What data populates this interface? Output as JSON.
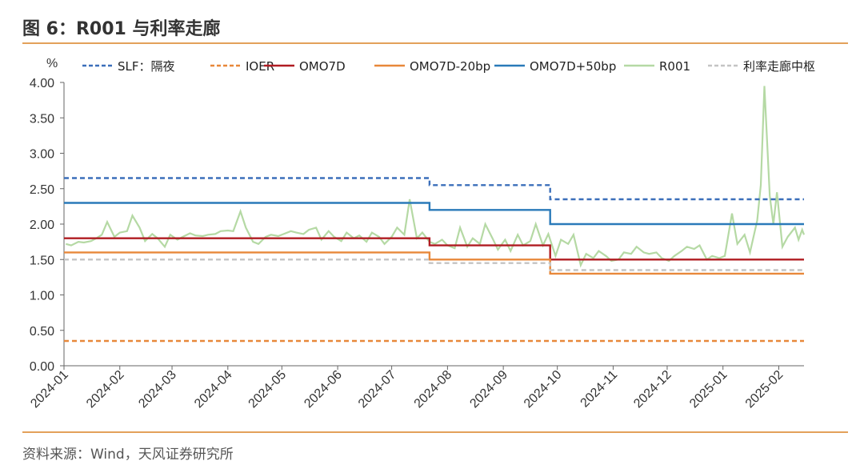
{
  "figure": {
    "title": "图 6：R001 与利率走廊",
    "source": "资料来源：Wind，天风证券研究所"
  },
  "chart_data": {
    "type": "line",
    "ylabel": "%",
    "ylim": [
      0,
      4
    ],
    "y_ticks": [
      "0.00",
      "0.50",
      "1.00",
      "1.50",
      "2.00",
      "2.50",
      "3.00",
      "3.50",
      "4.00"
    ],
    "x_ticks": [
      "2024-01",
      "2024-02",
      "2024-03",
      "2024-04",
      "2024-05",
      "2024-06",
      "2024-07",
      "2024-08",
      "2024-09",
      "2024-10",
      "2024-11",
      "2024-12",
      "2025-01",
      "2025-02"
    ],
    "x_range": [
      "2024-01-01",
      "2025-02-15"
    ],
    "grid": false,
    "legend_position": "top",
    "series": [
      {
        "name": "SLF：隔夜",
        "color": "#3b6fba",
        "dash": "6,4",
        "points": [
          [
            "2024-01-01",
            2.65
          ],
          [
            "2024-07-22",
            2.65
          ],
          [
            "2024-07-22",
            2.55
          ],
          [
            "2024-09-27",
            2.55
          ],
          [
            "2024-09-27",
            2.35
          ],
          [
            "2025-02-15",
            2.35
          ]
        ]
      },
      {
        "name": "IOER",
        "color": "#e8883a",
        "dash": "6,4",
        "points": [
          [
            "2024-01-01",
            0.35
          ],
          [
            "2025-02-15",
            0.35
          ]
        ]
      },
      {
        "name": "OMO7D",
        "color": "#b01c22",
        "dash": "",
        "points": [
          [
            "2024-01-01",
            1.8
          ],
          [
            "2024-07-22",
            1.8
          ],
          [
            "2024-07-22",
            1.7
          ],
          [
            "2024-09-27",
            1.7
          ],
          [
            "2024-09-27",
            1.5
          ],
          [
            "2025-02-15",
            1.5
          ]
        ]
      },
      {
        "name": "OMO7D-20bp",
        "color": "#e8883a",
        "dash": "",
        "points": [
          [
            "2024-01-01",
            1.6
          ],
          [
            "2024-07-22",
            1.6
          ],
          [
            "2024-07-22",
            1.5
          ],
          [
            "2024-09-27",
            1.5
          ],
          [
            "2024-09-27",
            1.3
          ],
          [
            "2025-02-15",
            1.3
          ]
        ]
      },
      {
        "name": "OMO7D+50bp",
        "color": "#2a7ab9",
        "dash": "",
        "points": [
          [
            "2024-01-01",
            2.3
          ],
          [
            "2024-07-22",
            2.3
          ],
          [
            "2024-07-22",
            2.2
          ],
          [
            "2024-09-27",
            2.2
          ],
          [
            "2024-09-27",
            2.0
          ],
          [
            "2025-02-15",
            2.0
          ]
        ]
      },
      {
        "name": "R001",
        "color": "#b5d9a4",
        "dash": "",
        "points": [
          [
            "2024-01-02",
            1.72
          ],
          [
            "2024-01-05",
            1.7
          ],
          [
            "2024-01-09",
            1.75
          ],
          [
            "2024-01-12",
            1.74
          ],
          [
            "2024-01-16",
            1.76
          ],
          [
            "2024-01-19",
            1.8
          ],
          [
            "2024-01-22",
            1.85
          ],
          [
            "2024-01-25",
            2.03
          ],
          [
            "2024-01-29",
            1.82
          ],
          [
            "2024-02-01",
            1.88
          ],
          [
            "2024-02-05",
            1.9
          ],
          [
            "2024-02-08",
            2.12
          ],
          [
            "2024-02-12",
            1.95
          ],
          [
            "2024-02-15",
            1.76
          ],
          [
            "2024-02-19",
            1.86
          ],
          [
            "2024-02-22",
            1.8
          ],
          [
            "2024-02-26",
            1.68
          ],
          [
            "2024-02-29",
            1.85
          ],
          [
            "2024-03-04",
            1.78
          ],
          [
            "2024-03-07",
            1.82
          ],
          [
            "2024-03-11",
            1.87
          ],
          [
            "2024-03-14",
            1.84
          ],
          [
            "2024-03-18",
            1.83
          ],
          [
            "2024-03-21",
            1.85
          ],
          [
            "2024-03-25",
            1.86
          ],
          [
            "2024-03-28",
            1.9
          ],
          [
            "2024-04-01",
            1.91
          ],
          [
            "2024-04-04",
            1.9
          ],
          [
            "2024-04-08",
            2.18
          ],
          [
            "2024-04-11",
            1.95
          ],
          [
            "2024-04-15",
            1.75
          ],
          [
            "2024-04-18",
            1.72
          ],
          [
            "2024-04-22",
            1.82
          ],
          [
            "2024-04-25",
            1.85
          ],
          [
            "2024-04-29",
            1.83
          ],
          [
            "2024-05-02",
            1.86
          ],
          [
            "2024-05-06",
            1.9
          ],
          [
            "2024-05-09",
            1.88
          ],
          [
            "2024-05-13",
            1.86
          ],
          [
            "2024-05-16",
            1.92
          ],
          [
            "2024-05-20",
            1.95
          ],
          [
            "2024-05-23",
            1.78
          ],
          [
            "2024-05-27",
            1.9
          ],
          [
            "2024-05-30",
            1.82
          ],
          [
            "2024-06-03",
            1.76
          ],
          [
            "2024-06-06",
            1.88
          ],
          [
            "2024-06-10",
            1.8
          ],
          [
            "2024-06-13",
            1.84
          ],
          [
            "2024-06-17",
            1.75
          ],
          [
            "2024-06-20",
            1.88
          ],
          [
            "2024-06-24",
            1.82
          ],
          [
            "2024-06-27",
            1.72
          ],
          [
            "2024-07-01",
            1.82
          ],
          [
            "2024-07-04",
            1.95
          ],
          [
            "2024-07-08",
            1.85
          ],
          [
            "2024-07-11",
            2.35
          ],
          [
            "2024-07-15",
            1.8
          ],
          [
            "2024-07-18",
            1.88
          ],
          [
            "2024-07-22",
            1.75
          ],
          [
            "2024-07-25",
            1.72
          ],
          [
            "2024-07-29",
            1.78
          ],
          [
            "2024-08-01",
            1.7
          ],
          [
            "2024-08-05",
            1.66
          ],
          [
            "2024-08-08",
            1.95
          ],
          [
            "2024-08-12",
            1.68
          ],
          [
            "2024-08-15",
            1.8
          ],
          [
            "2024-08-19",
            1.72
          ],
          [
            "2024-08-22",
            2.0
          ],
          [
            "2024-08-26",
            1.8
          ],
          [
            "2024-08-29",
            1.64
          ],
          [
            "2024-09-02",
            1.78
          ],
          [
            "2024-09-05",
            1.62
          ],
          [
            "2024-09-09",
            1.85
          ],
          [
            "2024-09-12",
            1.7
          ],
          [
            "2024-09-16",
            1.76
          ],
          [
            "2024-09-19",
            2.0
          ],
          [
            "2024-09-23",
            1.7
          ],
          [
            "2024-09-26",
            1.86
          ],
          [
            "2024-09-30",
            1.55
          ],
          [
            "2024-10-03",
            1.78
          ],
          [
            "2024-10-07",
            1.72
          ],
          [
            "2024-10-10",
            1.85
          ],
          [
            "2024-10-14",
            1.42
          ],
          [
            "2024-10-17",
            1.58
          ],
          [
            "2024-10-21",
            1.52
          ],
          [
            "2024-10-24",
            1.62
          ],
          [
            "2024-10-28",
            1.55
          ],
          [
            "2024-10-31",
            1.48
          ],
          [
            "2024-11-04",
            1.5
          ],
          [
            "2024-11-07",
            1.6
          ],
          [
            "2024-11-11",
            1.58
          ],
          [
            "2024-11-14",
            1.68
          ],
          [
            "2024-11-18",
            1.6
          ],
          [
            "2024-11-21",
            1.58
          ],
          [
            "2024-11-25",
            1.6
          ],
          [
            "2024-11-28",
            1.52
          ],
          [
            "2024-12-02",
            1.48
          ],
          [
            "2024-12-05",
            1.55
          ],
          [
            "2024-12-09",
            1.62
          ],
          [
            "2024-12-12",
            1.68
          ],
          [
            "2024-12-16",
            1.65
          ],
          [
            "2024-12-19",
            1.7
          ],
          [
            "2024-12-23",
            1.5
          ],
          [
            "2024-12-26",
            1.55
          ],
          [
            "2024-12-30",
            1.52
          ],
          [
            "2025-01-02",
            1.55
          ],
          [
            "2025-01-06",
            2.15
          ],
          [
            "2025-01-09",
            1.72
          ],
          [
            "2025-01-13",
            1.85
          ],
          [
            "2025-01-16",
            1.6
          ],
          [
            "2025-01-20",
            2.05
          ],
          [
            "2025-01-22",
            2.55
          ],
          [
            "2025-01-24",
            3.95
          ],
          [
            "2025-01-27",
            2.4
          ],
          [
            "2025-01-29",
            2.0
          ],
          [
            "2025-01-31",
            2.45
          ],
          [
            "2025-02-03",
            1.68
          ],
          [
            "2025-02-06",
            1.82
          ],
          [
            "2025-02-10",
            1.95
          ],
          [
            "2025-02-12",
            1.78
          ],
          [
            "2025-02-14",
            1.92
          ],
          [
            "2025-02-15",
            1.85
          ]
        ]
      },
      {
        "name": "利率走廊中枢",
        "color": "#c4c4c4",
        "dash": "6,4",
        "points": [
          [
            "2024-01-01",
            1.5
          ],
          [
            "2024-07-22",
            1.5
          ],
          [
            "2024-07-22",
            1.45
          ],
          [
            "2024-09-27",
            1.45
          ],
          [
            "2024-09-27",
            1.35
          ],
          [
            "2025-02-15",
            1.35
          ]
        ]
      }
    ]
  }
}
